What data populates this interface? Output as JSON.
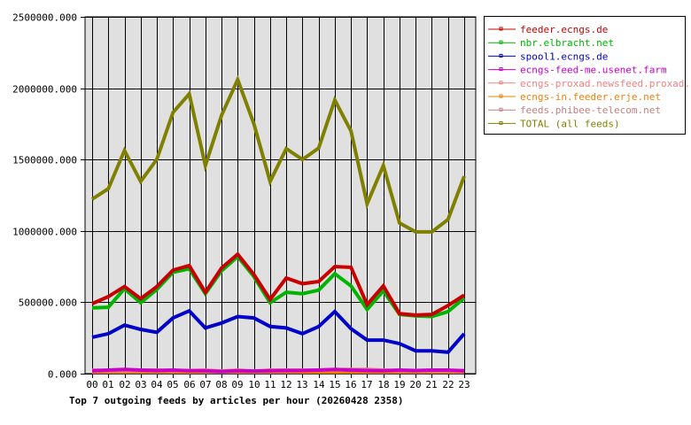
{
  "chart_data": {
    "type": "line",
    "title": "Top 7 outgoing feeds by articles per hour (20260428 2358)",
    "xlabel": "",
    "ylabel": "",
    "ylim": [
      0,
      2500000
    ],
    "y_ticks": [
      "0.000",
      "500000.000",
      "1000000.000",
      "1500000.000",
      "2000000.000",
      "2500000.000"
    ],
    "y_tick_values": [
      0,
      500000,
      1000000,
      1500000,
      2000000,
      2500000
    ],
    "categories": [
      "00",
      "01",
      "02",
      "03",
      "04",
      "05",
      "06",
      "07",
      "08",
      "09",
      "10",
      "11",
      "12",
      "13",
      "14",
      "15",
      "16",
      "17",
      "18",
      "19",
      "20",
      "21",
      "22",
      "23"
    ],
    "grid": true,
    "legend_position": "right",
    "series": [
      {
        "name": "feeder.ecngs.de",
        "color": "#c80000",
        "values": [
          490000,
          540000,
          610000,
          525000,
          610000,
          725000,
          757000,
          570000,
          740000,
          837000,
          695000,
          520000,
          670000,
          630000,
          645000,
          750000,
          745000,
          484000,
          615000,
          420000,
          410000,
          415000,
          477000,
          550000
        ]
      },
      {
        "name": "nbr.elbracht.net",
        "color": "#00b400",
        "values": [
          460000,
          465000,
          595000,
          497000,
          590000,
          710000,
          735000,
          560000,
          720000,
          820000,
          680000,
          497000,
          570000,
          560000,
          585000,
          700000,
          615000,
          450000,
          580000,
          415000,
          405000,
          400000,
          435000,
          530000
        ]
      },
      {
        "name": "spool1.ecngs.de",
        "color": "#0000c8",
        "values": [
          255000,
          280000,
          340000,
          310000,
          290000,
          390000,
          440000,
          320000,
          355000,
          400000,
          390000,
          330000,
          320000,
          280000,
          330000,
          435000,
          315000,
          235000,
          235000,
          210000,
          160000,
          160000,
          150000,
          280000
        ]
      },
      {
        "name": "ecngs-feed-me.usenet.farm",
        "color": "#c800c8",
        "values": [
          20000,
          25000,
          30000,
          25000,
          22000,
          25000,
          20000,
          20000,
          15000,
          20000,
          18000,
          20000,
          22000,
          22000,
          25000,
          30000,
          25000,
          22000,
          20000,
          25000,
          22000,
          25000,
          25000,
          20000
        ]
      },
      {
        "name": "ecngs-proxad.newsfeed.proxad.net",
        "color": "#f08080",
        "values": [
          25000,
          22000,
          22000,
          25000,
          25000,
          22000,
          22000,
          25000,
          18000,
          25000,
          18000,
          25000,
          25000,
          25000,
          25000,
          28000,
          30000,
          30000,
          25000,
          22000,
          22000,
          22000,
          22000,
          22000
        ]
      },
      {
        "name": "ecngs-in.feeder.erje.net",
        "color": "#f08000",
        "values": [
          15000,
          15000,
          15000,
          15000,
          15000,
          15000,
          12000,
          15000,
          15000,
          15000,
          15000,
          15000,
          15000,
          12000,
          12000,
          12000,
          12000,
          12000,
          12000,
          15000,
          15000,
          15000,
          15000,
          15000
        ]
      },
      {
        "name": "feeds.phibee-telecom.net",
        "color": "#c08080",
        "values": [
          10000,
          10000,
          10000,
          10000,
          10000,
          10000,
          10000,
          10000,
          10000,
          10000,
          10000,
          10000,
          10000,
          10000,
          10000,
          10000,
          10000,
          10000,
          10000,
          10000,
          10000,
          10000,
          10000,
          10000
        ]
      },
      {
        "name": "TOTAL (all feeds)",
        "color": "#808000",
        "values": [
          1222000,
          1296000,
          1563000,
          1346000,
          1501000,
          1830000,
          1960000,
          1458000,
          1810000,
          2060000,
          1750000,
          1346000,
          1576000,
          1500000,
          1580000,
          1917000,
          1700000,
          1190000,
          1458000,
          1055000,
          993000,
          993000,
          1080000,
          1383000
        ]
      }
    ]
  }
}
